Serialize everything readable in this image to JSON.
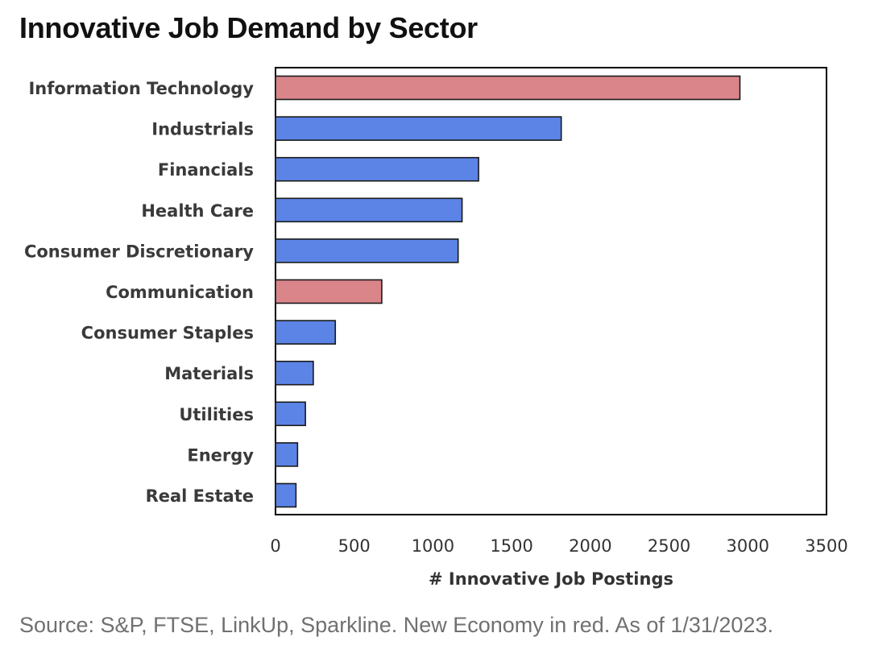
{
  "header": {
    "title": "Innovative Job Demand by Sector"
  },
  "footer": {
    "source": "Source: S&P, FTSE, LinkUp, Sparkline. New Economy in red. As of 1/31/2023."
  },
  "colors": {
    "new_economy": "#d9858a",
    "other": "#5b84e6",
    "bar_border": "#1a1a1a",
    "frame": "#000000"
  },
  "chart_data": {
    "type": "bar",
    "orientation": "horizontal",
    "categories": [
      "Information Technology",
      "Industrials",
      "Financials",
      "Health Care",
      "Consumer Discretionary",
      "Communication",
      "Consumer Staples",
      "Materials",
      "Utilities",
      "Energy",
      "Real Estate"
    ],
    "values": [
      2950,
      1815,
      1290,
      1185,
      1160,
      675,
      380,
      240,
      190,
      140,
      130
    ],
    "new_economy": [
      true,
      false,
      false,
      false,
      false,
      true,
      false,
      false,
      false,
      false,
      false
    ],
    "xlabel": "# Innovative Job Postings",
    "ylabel": "",
    "xlim": [
      0,
      3500
    ],
    "xticks": [
      0,
      500,
      1000,
      1500,
      2000,
      2500,
      3000,
      3500
    ],
    "grid": false
  }
}
